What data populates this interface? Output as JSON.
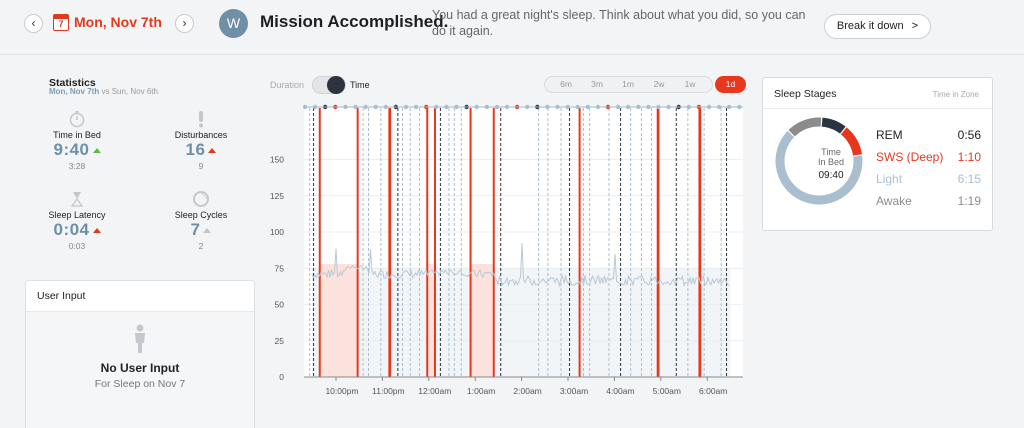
{
  "header": {
    "prev_icon": "chevron-left",
    "next_icon": "chevron-right",
    "calendar_day": "7",
    "date": "Mon, Nov 7th",
    "logo_letter": "W",
    "title": "Mission Accomplished.",
    "message": "You had a great night's sleep. Think about what you did, so you can do it again.",
    "break_button": "Break it down",
    "break_arrow": ">"
  },
  "statistics": {
    "title": "Statistics",
    "compare_current": "Mon, Nov 7th",
    "compare_vs": "vs",
    "compare_prev": "Sun, Nov 6th",
    "items": [
      {
        "label": "Time in Bed",
        "value": "9:40",
        "prev": "3:28",
        "trend": "up-green",
        "icon": "stopwatch-icon"
      },
      {
        "label": "Disturbances",
        "value": "16",
        "prev": "9",
        "trend": "up-red",
        "icon": "exclamation-icon"
      },
      {
        "label": "Sleep Latency",
        "value": "0:04",
        "prev": "0:03",
        "trend": "up-red",
        "icon": "hourglass-icon"
      },
      {
        "label": "Sleep Cycles",
        "value": "7",
        "prev": "2",
        "trend": "up-grey",
        "icon": "cycle-icon"
      }
    ]
  },
  "user_input": {
    "title": "User Input",
    "empty_title": "No User Input",
    "empty_sub": "For Sleep on Nov 7"
  },
  "controls": {
    "duration_label": "Duration",
    "time_label": "Time",
    "ranges": [
      "6m",
      "3m",
      "1m",
      "2w",
      "1w"
    ],
    "active_range": "1d"
  },
  "sleep_stages": {
    "title": "Sleep Stages",
    "subtitle": "Time in Zone",
    "center_label": "Time\nIn Bed",
    "center_value": "09:40",
    "stages": [
      {
        "name": "REM",
        "value": "0:56",
        "color": "#2b3440"
      },
      {
        "name": "SWS (Deep)",
        "value": "1:10",
        "color": "#e8371d"
      },
      {
        "name": "Light",
        "value": "6:15",
        "color": "#a9bfcf"
      },
      {
        "name": "Awake",
        "value": "1:19",
        "color": "#8c8c8c"
      }
    ]
  },
  "chart_data": {
    "type": "line",
    "y_ticks": [
      0,
      25,
      50,
      75,
      100,
      125,
      150
    ],
    "x_ticks": [
      "10:00pm",
      "11:00pm",
      "12:00am",
      "1:00am",
      "2:00am",
      "3:00am",
      "4:00am",
      "5:00am",
      "6:00am"
    ],
    "ylim": [
      0,
      160
    ],
    "grid": true,
    "deep_sleep_bands": [
      [
        "9:39pm",
        "10:28pm"
      ],
      [
        "11:09pm",
        "11:10pm"
      ],
      [
        "11:58pm",
        "12:08am"
      ],
      [
        "12:54am",
        "1:24am"
      ],
      [
        "3:14pm",
        "3:15am"
      ],
      [
        "4:56am",
        "4:57am"
      ],
      [
        "5:50am",
        "5:51am"
      ]
    ],
    "colors": {
      "deep": "#e8371d",
      "rem": "#2b3440",
      "light": "#a9bfcf",
      "awake": "#c4c8cc"
    }
  }
}
